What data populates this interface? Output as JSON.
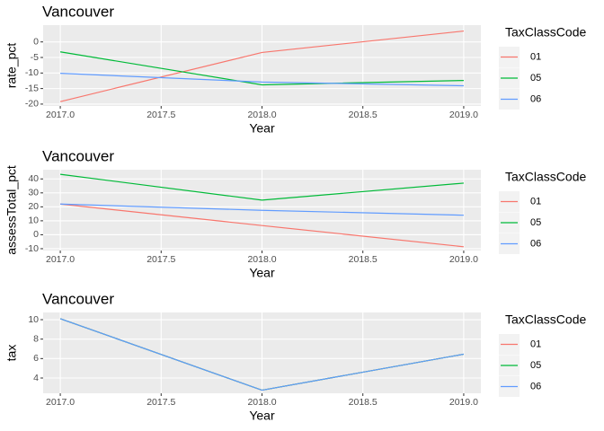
{
  "chart_data": [
    {
      "type": "line",
      "title": "Vancouver",
      "x_label": "Year",
      "y_label": "rate_pct",
      "legend_title": "TaxClassCode",
      "x": [
        2017,
        2018,
        2019
      ],
      "series": [
        {
          "name": "01",
          "color": "#F8766D",
          "values": [
            -19.2,
            -3.4,
            3.5
          ]
        },
        {
          "name": "05",
          "color": "#00BA38",
          "values": [
            -3.2,
            -13.8,
            -12.4
          ]
        },
        {
          "name": "06",
          "color": "#619CFF",
          "values": [
            -10.1,
            -12.9,
            -14.1
          ]
        }
      ],
      "xlim": [
        2016.915,
        2019.085
      ],
      "xticks": [
        {
          "value": 2017,
          "label": "2017.0"
        },
        {
          "value": 2017.5,
          "label": "2017.5"
        },
        {
          "value": 2018,
          "label": "2018.0"
        },
        {
          "value": 2018.5,
          "label": "2018.5"
        },
        {
          "value": 2019,
          "label": "2019.0"
        }
      ],
      "ylim": [
        -20.6,
        5.4
      ],
      "yticks": [
        -20,
        -15,
        -10,
        -5,
        0
      ],
      "grid": true
    },
    {
      "type": "line",
      "title": "Vancouver",
      "x_label": "Year",
      "y_label": "assessTotal_pct",
      "legend_title": "TaxClassCode",
      "x": [
        2017,
        2018,
        2019
      ],
      "series": [
        {
          "name": "01",
          "color": "#F8766D",
          "values": [
            22,
            6.6,
            -8.6
          ]
        },
        {
          "name": "05",
          "color": "#00BA38",
          "values": [
            43.3,
            24.8,
            37
          ]
        },
        {
          "name": "06",
          "color": "#619CFF",
          "values": [
            22,
            17.5,
            14
          ]
        }
      ],
      "xlim": [
        2016.915,
        2019.085
      ],
      "xticks": [
        {
          "value": 2017,
          "label": "2017.0"
        },
        {
          "value": 2017.5,
          "label": "2017.5"
        },
        {
          "value": 2018,
          "label": "2018.0"
        },
        {
          "value": 2018.5,
          "label": "2018.5"
        },
        {
          "value": 2019,
          "label": "2019.0"
        }
      ],
      "ylim": [
        -11.3,
        46.6
      ],
      "yticks": [
        -10,
        0,
        10,
        20,
        30,
        40
      ],
      "grid": true
    },
    {
      "type": "line",
      "title": "Vancouver",
      "x_label": "Year",
      "y_label": "tax",
      "legend_title": "TaxClassCode",
      "x": [
        2017,
        2018,
        2019
      ],
      "series": [
        {
          "name": "01",
          "color": "#F8766D",
          "values": [
            10.1,
            2.75,
            6.45
          ]
        },
        {
          "name": "05",
          "color": "#00BA38",
          "values": [
            10.1,
            2.75,
            6.45
          ]
        },
        {
          "name": "06",
          "color": "#619CFF",
          "values": [
            10.1,
            2.75,
            6.45
          ]
        }
      ],
      "xlim": [
        2016.915,
        2019.085
      ],
      "xticks": [
        {
          "value": 2017,
          "label": "2017.0"
        },
        {
          "value": 2017.5,
          "label": "2017.5"
        },
        {
          "value": 2018,
          "label": "2018.0"
        },
        {
          "value": 2018.5,
          "label": "2018.5"
        },
        {
          "value": 2019,
          "label": "2019.0"
        }
      ],
      "ylim": [
        2.43,
        10.74
      ],
      "yticks": [
        4,
        6,
        8,
        10
      ],
      "grid": true
    }
  ]
}
